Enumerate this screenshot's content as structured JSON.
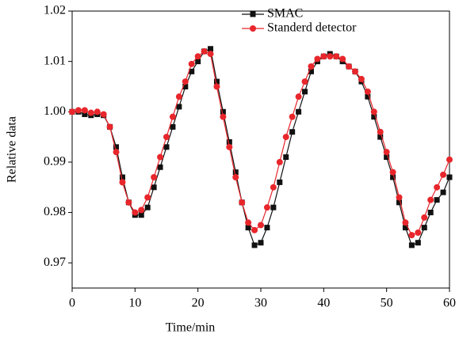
{
  "chart_data": {
    "type": "line",
    "xlabel": "Time/min",
    "ylabel": "Relative data",
    "x": [
      0,
      1,
      2,
      3,
      4,
      5,
      6,
      7,
      8,
      9,
      10,
      11,
      12,
      13,
      14,
      15,
      16,
      17,
      18,
      19,
      20,
      21,
      22,
      23,
      24,
      25,
      26,
      27,
      28,
      29,
      30,
      31,
      32,
      33,
      34,
      35,
      36,
      37,
      38,
      39,
      40,
      41,
      42,
      43,
      44,
      45,
      46,
      47,
      48,
      49,
      50,
      51,
      52,
      53,
      54,
      55,
      56,
      57,
      58,
      59,
      60
    ],
    "series": [
      {
        "name": "SMAC",
        "color": "#111111",
        "marker": "square",
        "values": [
          1.0,
          1.0,
          0.9995,
          0.9993,
          0.9995,
          0.9993,
          0.997,
          0.993,
          0.987,
          0.982,
          0.9795,
          0.9795,
          0.981,
          0.985,
          0.989,
          0.993,
          0.997,
          1.001,
          1.005,
          1.008,
          1.01,
          1.012,
          1.0125,
          1.006,
          1.0,
          0.994,
          0.988,
          0.982,
          0.977,
          0.9735,
          0.974,
          0.977,
          0.981,
          0.986,
          0.991,
          0.996,
          1.0,
          1.004,
          1.008,
          1.01,
          1.011,
          1.0115,
          1.011,
          1.01,
          1.009,
          1.008,
          1.006,
          1.003,
          0.999,
          0.995,
          0.991,
          0.987,
          0.982,
          0.977,
          0.9735,
          0.974,
          0.977,
          0.98,
          0.9825,
          0.984,
          0.987
        ]
      },
      {
        "name": "Standerd detector",
        "color": "#e8262b",
        "marker": "circle",
        "values": [
          1.0,
          1.0003,
          1.0003,
          0.9998,
          1.0,
          0.9995,
          0.997,
          0.992,
          0.986,
          0.982,
          0.98,
          0.9805,
          0.983,
          0.987,
          0.991,
          0.995,
          0.999,
          1.003,
          1.006,
          1.0095,
          1.011,
          1.012,
          1.0115,
          1.005,
          0.999,
          0.993,
          0.987,
          0.982,
          0.978,
          0.9765,
          0.9775,
          0.981,
          0.985,
          0.99,
          0.995,
          0.999,
          1.003,
          1.006,
          1.009,
          1.0105,
          1.011,
          1.011,
          1.011,
          1.0105,
          1.009,
          1.008,
          1.0065,
          1.004,
          1.0,
          0.996,
          0.992,
          0.988,
          0.983,
          0.978,
          0.9755,
          0.976,
          0.979,
          0.9825,
          0.985,
          0.9875,
          0.9905
        ]
      }
    ],
    "xlim": [
      0,
      60
    ],
    "xticks": [
      0,
      10,
      20,
      30,
      40,
      50,
      60
    ],
    "ylim": [
      0.965,
      1.02
    ],
    "yticks": [
      0.97,
      0.98,
      0.99,
      {
        "value": 1,
        "label": "1.00"
      },
      1.01,
      1.02
    ],
    "grid": false,
    "legend": "top"
  }
}
